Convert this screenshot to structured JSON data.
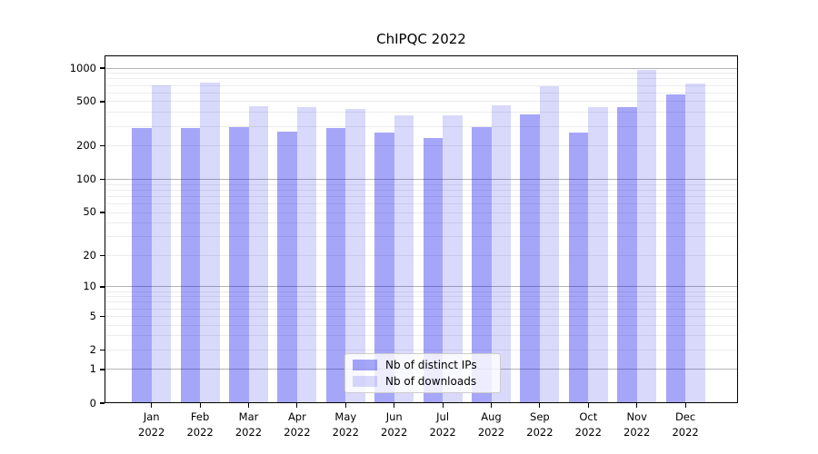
{
  "figure": {
    "background_color": "#ffffff",
    "spine_color": "#000000"
  },
  "chart_data": {
    "type": "bar",
    "title": "ChIPQC 2022",
    "xlabel": "",
    "ylabel": "",
    "yscale": "log1p",
    "ylim": [
      0,
      1300
    ],
    "y_ticks": [
      0,
      1,
      2,
      5,
      10,
      20,
      50,
      100,
      200,
      500,
      1000
    ],
    "grid": {
      "orientation": "horizontal",
      "major_values": [
        1,
        10,
        100,
        1000
      ],
      "minor_values": [
        2,
        3,
        4,
        5,
        6,
        7,
        8,
        9,
        20,
        30,
        40,
        50,
        60,
        70,
        80,
        90,
        200,
        300,
        400,
        500,
        600,
        700,
        800,
        900
      ],
      "major_color": "#b3b3b3",
      "minor_color": "#ececec"
    },
    "categories": [
      "Jan 2022",
      "Feb 2022",
      "Mar 2022",
      "Apr 2022",
      "May 2022",
      "Jun 2022",
      "Jul 2022",
      "Aug 2022",
      "Sep 2022",
      "Oct 2022",
      "Nov 2022",
      "Dec 2022"
    ],
    "series": [
      {
        "name": "Nb of distinct IPs",
        "fill": "rgba(0,0,235,0.35)",
        "solid_hex_on_white": "#a6a6f8",
        "values": [
          290,
          292,
          293,
          271,
          288,
          262,
          238,
          297,
          388,
          262,
          451,
          580
        ]
      },
      {
        "name": "Nb of downloads",
        "fill": "rgba(0,0,235,0.15)",
        "solid_hex_on_white": "#d9d9fa",
        "values": [
          705,
          745,
          453,
          450,
          432,
          380,
          380,
          466,
          685,
          450,
          960,
          722
        ]
      }
    ],
    "legend_position": "lower center",
    "legend_labels": [
      "Nb of distinct IPs",
      "Nb of downloads"
    ]
  }
}
